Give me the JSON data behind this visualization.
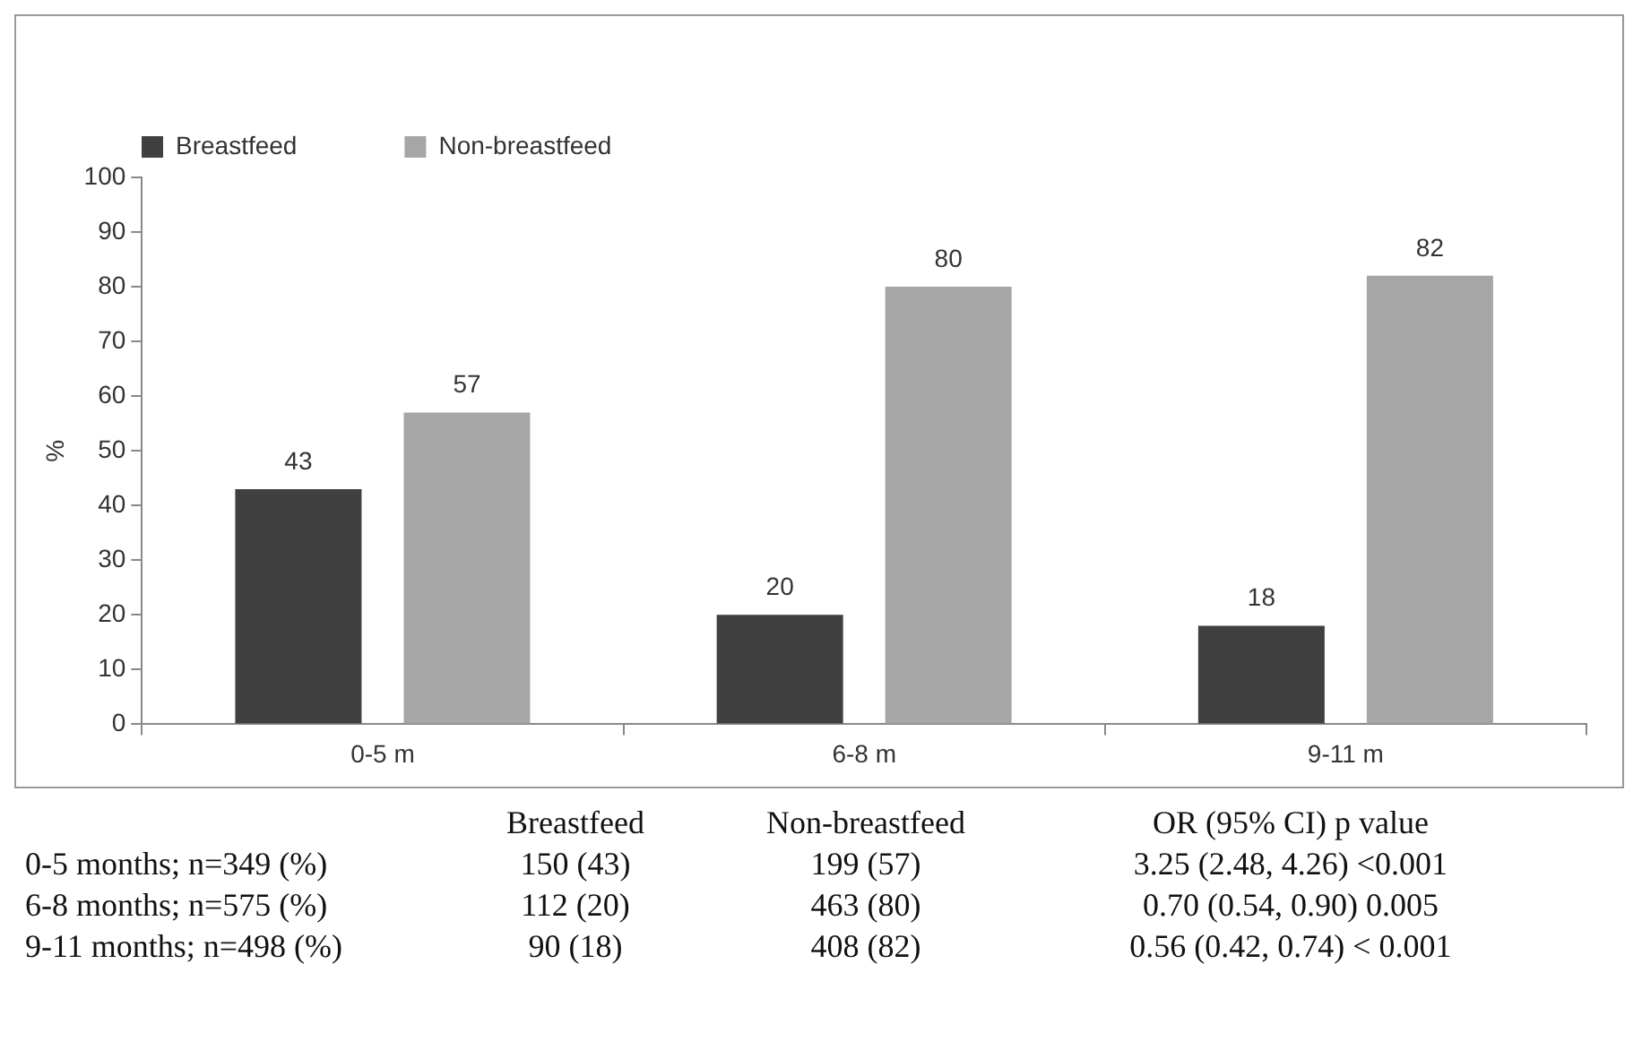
{
  "chart_data": {
    "type": "bar",
    "ylabel": "%",
    "categories": [
      "0-5 m",
      "6-8 m",
      "9-11 m"
    ],
    "series": [
      {
        "name": "Breastfeed",
        "color": "#404040",
        "values": [
          43,
          20,
          18
        ]
      },
      {
        "name": "Non-breastfeed",
        "color": "#a6a6a6",
        "values": [
          57,
          80,
          82
        ]
      }
    ],
    "ylim": [
      0,
      100
    ],
    "yticks": [
      0,
      10,
      20,
      30,
      40,
      50,
      60,
      70,
      80,
      90,
      100
    ],
    "grid": false,
    "legend": "top",
    "data_labels": true,
    "annotations": [
      "Breastfeed",
      "Non-breastfeed",
      "OR (95% CI) p value",
      "0-5 months; n=349 (%)",
      "150 (43)",
      "199 (57)",
      "3.25 (2.48, 4.26) <0.001",
      "6-8 months; n=575 (%)",
      "112 (20)",
      "463 (80)",
      "0.70 (0.54, 0.90) 0.005",
      "9-11 months; n=498 (%)",
      "90 (18)",
      "408 (82)",
      "0.56 (0.42, 0.74) < 0.001"
    ]
  }
}
